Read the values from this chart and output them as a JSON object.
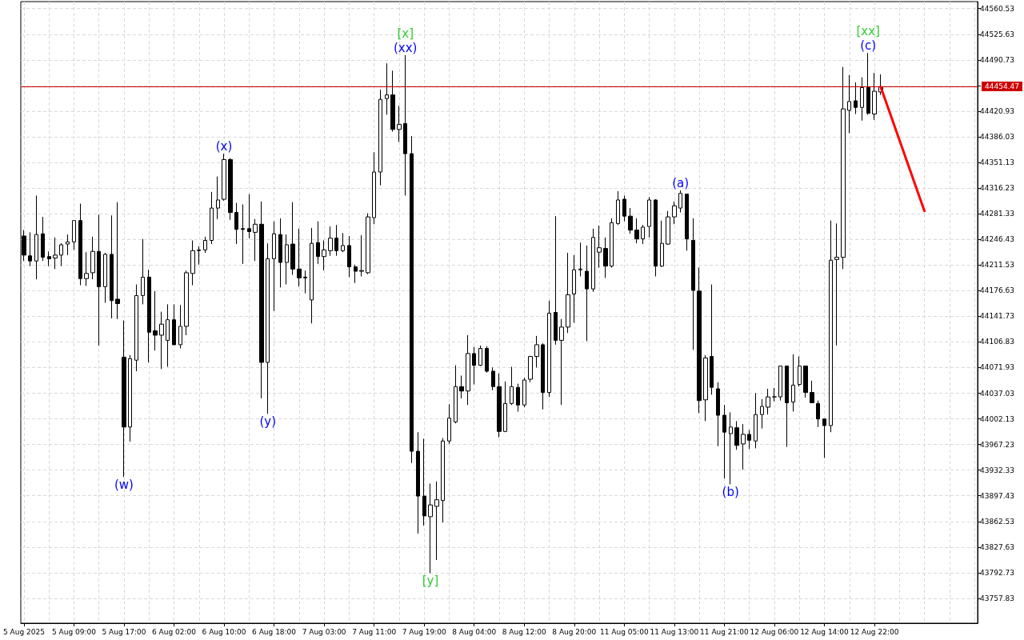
{
  "chart_data": {
    "type": "candlestick",
    "color": "#000000",
    "categories": [
      "5 Aug 2025",
      null,
      null,
      null,
      null,
      null,
      null,
      null,
      "5 Aug 09:00",
      null,
      null,
      null,
      null,
      null,
      null,
      null,
      "5 Aug 17:00",
      null,
      null,
      null,
      null,
      null,
      null,
      null,
      "6 Aug 02:00",
      null,
      null,
      null,
      null,
      null,
      null,
      null,
      "6 Aug 10:00",
      null,
      null,
      null,
      null,
      null,
      null,
      null,
      "6 Aug 18:00",
      null,
      null,
      null,
      null,
      null,
      null,
      null,
      "7 Aug 03:00",
      null,
      null,
      null,
      null,
      null,
      null,
      null,
      "7 Aug 11:00",
      null,
      null,
      null,
      null,
      null,
      null,
      null,
      "7 Aug 19:00",
      null,
      null,
      null,
      null,
      null,
      null,
      null,
      "8 Aug 04:00",
      null,
      null,
      null,
      null,
      null,
      null,
      null,
      "8 Aug 12:00",
      null,
      null,
      null,
      null,
      null,
      null,
      null,
      "8 Aug 20:00",
      null,
      null,
      null,
      null,
      null,
      null,
      null,
      "11 Aug 05:00",
      null,
      null,
      null,
      null,
      null,
      null,
      null,
      "11 Aug 13:00",
      null,
      null,
      null,
      null,
      null,
      null,
      null,
      "11 Aug 21:00",
      null,
      null,
      null,
      null,
      null,
      null,
      null,
      "12 Aug 06:00",
      null,
      null,
      null,
      null,
      null,
      null,
      null,
      "12 Aug 14:00",
      null,
      null,
      null,
      null,
      null,
      null,
      null,
      "12 Aug 22:00",
      null,
      null,
      null,
      null,
      null,
      null,
      null,
      null,
      null,
      null,
      null,
      null,
      null,
      null,
      null,
      null
    ],
    "ohlc": [
      [
        44251,
        44259,
        44217,
        44225
      ],
      [
        44224,
        44256,
        44210,
        44217
      ],
      [
        44217,
        44306,
        44192,
        44253
      ],
      [
        44254,
        44277,
        44217,
        44222
      ],
      [
        44223,
        44230,
        44210,
        44220
      ],
      [
        44221,
        44249,
        44206,
        44225
      ],
      [
        44225,
        44241,
        44210,
        44239
      ],
      [
        44240,
        44253,
        44225,
        44243
      ],
      [
        44243,
        44272,
        44232,
        44272
      ],
      [
        44272,
        44295,
        44184,
        44193
      ],
      [
        44193,
        44229,
        44183,
        44200
      ],
      [
        44201,
        44250,
        44192,
        44230
      ],
      [
        44230,
        44280,
        44102,
        44182
      ],
      [
        44182,
        44228,
        44160,
        44226
      ],
      [
        44226,
        44279,
        44139,
        44163
      ],
      [
        44165,
        44297,
        44138,
        44159
      ],
      [
        44086,
        44136,
        43923,
        43991
      ],
      [
        43991,
        44089,
        43971,
        44084
      ],
      [
        44082,
        44185,
        44067,
        44170
      ],
      [
        44170,
        44247,
        44158,
        44195
      ],
      [
        44195,
        44205,
        44079,
        44120
      ],
      [
        44122,
        44176,
        44095,
        44116
      ],
      [
        44116,
        44148,
        44070,
        44131
      ],
      [
        44109,
        44158,
        44073,
        44137
      ],
      [
        44137,
        44158,
        44103,
        44103
      ],
      [
        44103,
        44157,
        44098,
        44128
      ],
      [
        44128,
        44204,
        44116,
        44201
      ],
      [
        44200,
        44245,
        44184,
        44231
      ],
      [
        44231,
        44237,
        44212,
        44232
      ],
      [
        44232,
        44250,
        44228,
        44245
      ],
      [
        44245,
        44311,
        44240,
        44289
      ],
      [
        44289,
        44332,
        44274,
        44300
      ],
      [
        44301,
        44363,
        44299,
        44355
      ],
      [
        44355,
        44357,
        44273,
        44283
      ],
      [
        44283,
        44296,
        44240,
        44260
      ],
      [
        44261,
        44294,
        44213,
        44260
      ],
      [
        44261,
        44308,
        44248,
        44257
      ],
      [
        44256,
        44274,
        44217,
        44267
      ],
      [
        44267,
        44298,
        44030,
        44079
      ],
      [
        44079,
        44241,
        44009,
        44220
      ],
      [
        44220,
        44271,
        44149,
        44254
      ],
      [
        44253,
        44275,
        44181,
        44215
      ],
      [
        44215,
        44253,
        44185,
        44239
      ],
      [
        44240,
        44297,
        44198,
        44206
      ],
      [
        44206,
        44261,
        44182,
        44194
      ],
      [
        44195,
        44204,
        44173,
        44194
      ],
      [
        44164,
        44262,
        44132,
        44241
      ],
      [
        44242,
        44271,
        44213,
        44223
      ],
      [
        44223,
        44245,
        44204,
        44232
      ],
      [
        44231,
        44264,
        44224,
        44248
      ],
      [
        44248,
        44266,
        44224,
        44231
      ],
      [
        44231,
        44255,
        44229,
        44238
      ],
      [
        44238,
        44251,
        44195,
        44209
      ],
      [
        44209,
        44212,
        44187,
        44203
      ],
      [
        44203,
        44252,
        44196,
        44204
      ],
      [
        44201,
        44282,
        44199,
        44277
      ],
      [
        44276,
        44365,
        44267,
        44338
      ],
      [
        44338,
        44450,
        44320,
        44437
      ],
      [
        44438,
        44486,
        44416,
        44443
      ],
      [
        44443,
        44476,
        44393,
        44396
      ],
      [
        44396,
        44428,
        44379,
        44403
      ],
      [
        44404,
        44497,
        44306,
        44363
      ],
      [
        44363,
        44387,
        43942,
        43958
      ],
      [
        43958,
        43984,
        43846,
        43897
      ],
      [
        43897,
        43975,
        43857,
        43870
      ],
      [
        43869,
        43914,
        43792,
        43885
      ],
      [
        43883,
        43917,
        43810,
        43892
      ],
      [
        43891,
        43976,
        43861,
        43972
      ],
      [
        43972,
        44022,
        43968,
        44003
      ],
      [
        43998,
        44075,
        43996,
        44046
      ],
      [
        44046,
        44061,
        44030,
        44040
      ],
      [
        44040,
        44116,
        44021,
        44091
      ],
      [
        44091,
        44100,
        44049,
        44075
      ],
      [
        44075,
        44102,
        44074,
        44098
      ],
      [
        44098,
        44101,
        44065,
        44067
      ],
      [
        44067,
        44072,
        44041,
        44046
      ],
      [
        44046,
        44064,
        43977,
        43985
      ],
      [
        43985,
        44053,
        43984,
        44023
      ],
      [
        44023,
        44073,
        44021,
        44046
      ],
      [
        44045,
        44050,
        44012,
        44021
      ],
      [
        44021,
        44058,
        44018,
        44055
      ],
      [
        44056,
        44088,
        44052,
        44087
      ],
      [
        44087,
        44115,
        44072,
        44103
      ],
      [
        44103,
        44105,
        44015,
        44038
      ],
      [
        44038,
        44163,
        44032,
        44146
      ],
      [
        44147,
        44278,
        44103,
        44109
      ],
      [
        44109,
        44138,
        44021,
        44127
      ],
      [
        44127,
        44228,
        44119,
        44171
      ],
      [
        44172,
        44225,
        44133,
        44205
      ],
      [
        44205,
        44242,
        44196,
        44206
      ],
      [
        44203,
        44238,
        44108,
        44179
      ],
      [
        44179,
        44261,
        44175,
        44249
      ],
      [
        44229,
        44265,
        44208,
        44235
      ],
      [
        44234,
        44249,
        44194,
        44210
      ],
      [
        44210,
        44275,
        44208,
        44269
      ],
      [
        44268,
        44312,
        44266,
        44300
      ],
      [
        44301,
        44306,
        44271,
        44278
      ],
      [
        44278,
        44289,
        44254,
        44259
      ],
      [
        44259,
        44275,
        44241,
        44247
      ],
      [
        44247,
        44266,
        44240,
        44263
      ],
      [
        44264,
        44304,
        44249,
        44300
      ],
      [
        44300,
        44301,
        44196,
        44210
      ],
      [
        44210,
        44272,
        44209,
        44241
      ],
      [
        44240,
        44285,
        44239,
        44277
      ],
      [
        44277,
        44298,
        44267,
        44292
      ],
      [
        44289,
        44313,
        44283,
        44309
      ],
      [
        44308,
        44308,
        44231,
        44247
      ],
      [
        44245,
        44275,
        44096,
        44177
      ],
      [
        44176,
        44208,
        44010,
        44027
      ],
      [
        44028,
        44089,
        43999,
        44085
      ],
      [
        44087,
        44185,
        44035,
        44045
      ],
      [
        44043,
        44052,
        43965,
        44007
      ],
      [
        44007,
        44021,
        43921,
        43984
      ],
      [
        43982,
        44011,
        43913,
        43991
      ],
      [
        43990,
        43999,
        43960,
        43966
      ],
      [
        43968,
        43995,
        43933,
        43981
      ],
      [
        43981,
        43987,
        43961,
        43973
      ],
      [
        43972,
        44037,
        43962,
        44008
      ],
      [
        44008,
        44029,
        43989,
        44019
      ],
      [
        44018,
        44043,
        44008,
        44032
      ],
      [
        44032,
        44044,
        44026,
        44032
      ],
      [
        44032,
        44074,
        44027,
        44074
      ],
      [
        44074,
        44074,
        43964,
        44024
      ],
      [
        44025,
        44090,
        44012,
        44048
      ],
      [
        44049,
        44087,
        44046,
        44074
      ],
      [
        44074,
        44074,
        44031,
        44038
      ],
      [
        44038,
        44054,
        44024,
        44024
      ],
      [
        44023,
        44027,
        43991,
        44002
      ],
      [
        44002,
        44002,
        43949,
        43993
      ],
      [
        43993,
        44272,
        43984,
        44218
      ],
      [
        44219,
        44268,
        44102,
        44222
      ],
      [
        44222,
        44481,
        44206,
        44424
      ],
      [
        44422,
        44470,
        44391,
        44434
      ],
      [
        44435,
        44460,
        44417,
        44426
      ],
      [
        44426,
        44467,
        44408,
        44453
      ],
      [
        44453,
        44500,
        44416,
        44418
      ],
      [
        44417,
        44473,
        44409,
        44448
      ],
      [
        44447,
        44471,
        44443,
        44454
      ],
      null,
      null,
      null,
      null,
      null,
      null,
      null,
      null,
      null,
      null,
      null,
      null,
      null,
      null,
      null
    ],
    "series": [
      {
        "type": "line",
        "color": "#ff0000",
        "values": [
          null,
          null,
          null,
          null,
          null,
          null,
          null,
          null,
          null,
          null,
          null,
          null,
          null,
          null,
          null,
          null,
          null,
          null,
          null,
          null,
          null,
          null,
          null,
          null,
          null,
          null,
          null,
          null,
          null,
          null,
          null,
          null,
          null,
          null,
          null,
          null,
          null,
          null,
          null,
          null,
          null,
          null,
          null,
          null,
          null,
          null,
          null,
          null,
          null,
          null,
          null,
          null,
          null,
          null,
          null,
          null,
          null,
          null,
          null,
          null,
          null,
          null,
          null,
          null,
          null,
          null,
          null,
          null,
          null,
          null,
          null,
          null,
          null,
          null,
          null,
          null,
          null,
          null,
          null,
          null,
          null,
          null,
          null,
          null,
          null,
          null,
          null,
          null,
          null,
          null,
          null,
          null,
          null,
          null,
          null,
          null,
          null,
          null,
          null,
          null,
          null,
          null,
          null,
          null,
          null,
          null,
          null,
          null,
          null,
          null,
          null,
          null,
          null,
          null,
          null,
          null,
          null,
          null,
          null,
          null,
          null,
          null,
          null,
          null,
          null,
          null,
          null,
          null,
          null,
          null,
          null,
          null,
          null,
          null,
          null,
          null,
          null,
          44454,
          null,
          null,
          null,
          null,
          null,
          null,
          44285,
          null,
          null,
          null,
          null,
          null,
          null,
          null,
          null
        ]
      }
    ],
    "marker": "none",
    "ylim": [
      43724,
      44570
    ],
    "yticks": [
      44560.53,
      44525.63,
      44490.73,
      {
        "value": 44455.83,
        "label": null
      },
      44420.93,
      44386.03,
      44351.13,
      44316.23,
      44281.33,
      44246.43,
      44211.53,
      44176.63,
      44141.73,
      44106.83,
      44071.93,
      44037.03,
      44002.13,
      43967.23,
      43932.33,
      43897.43,
      43862.53,
      43827.63,
      43792.73,
      43757.83
    ],
    "grid": true,
    "ref_lines": [
      {
        "axis": "y",
        "value": 44454.47,
        "label": "44454.47",
        "color": "#cc0000"
      }
    ],
    "annotations": [
      {
        "text": "(w)",
        "y": 43923
      },
      {
        "text": "(x)",
        "y": 44363
      },
      {
        "text": "(y)",
        "y": 44009
      },
      {
        "text": "(xx)",
        "y": 44497
      },
      {
        "text": "(a)",
        "y": 44313
      },
      {
        "text": "(b)",
        "y": 43913
      },
      {
        "text": "(c)",
        "y": 44500
      },
      {
        "text": "[x]",
        "y": 44497
      },
      {
        "text": "[y]",
        "y": 43792
      },
      {
        "text": "[xx]",
        "y": 44500
      }
    ]
  }
}
